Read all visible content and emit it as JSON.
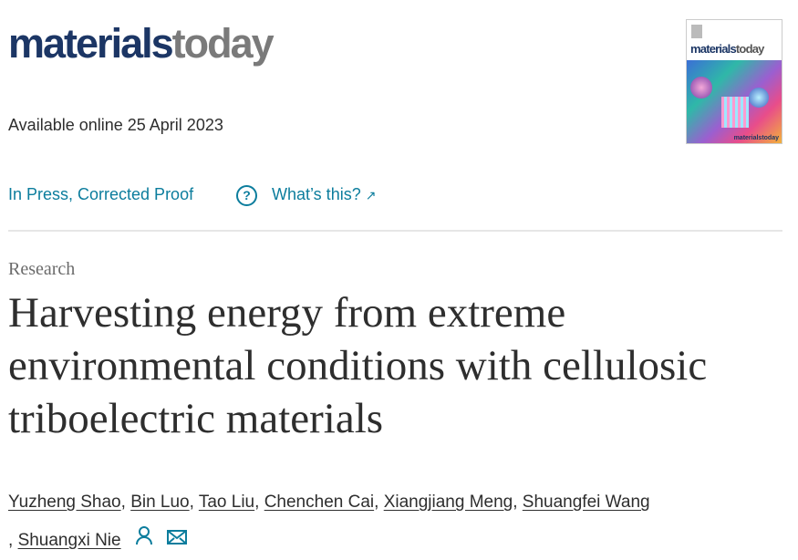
{
  "journal": {
    "logo_part1": "materials",
    "logo_part2": "today",
    "cover_alt": "materialstoday"
  },
  "available": "Available online 25 April 2023",
  "status": {
    "label": "In Press, Corrected Proof",
    "help_icon": "question-circle-icon",
    "help_link": "What’s this?",
    "external_icon": "arrow-up-right-icon"
  },
  "article": {
    "type": "Research",
    "title": "Harvesting energy from extreme environmental conditions with cellulosic triboelectric materials",
    "authors": [
      "Yuzheng Shao",
      "Bin Luo",
      "Tao Liu",
      "Chenchen Cai",
      "Xiangjiang Meng",
      "Shuangfei Wang",
      "Shuangxi Nie"
    ],
    "author_icons": [
      "person-icon",
      "envelope-icon"
    ]
  },
  "colors": {
    "link": "#0c7d9d",
    "logo_navy": "#1c3665",
    "logo_gray": "#7a7a7a"
  }
}
